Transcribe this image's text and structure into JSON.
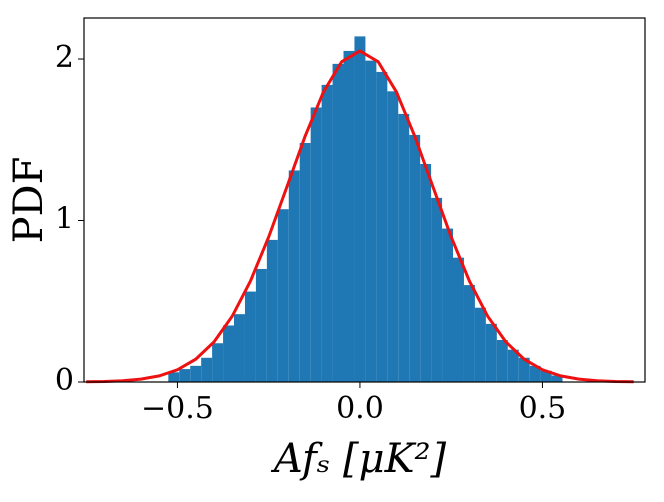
{
  "chart_data": {
    "type": "histogram",
    "xlabel": "Afₛ [μK²]",
    "ylabel": "PDF",
    "bins": [
      -0.525,
      -0.495,
      -0.465,
      -0.435,
      -0.405,
      -0.375,
      -0.345,
      -0.315,
      -0.285,
      -0.255,
      -0.225,
      -0.195,
      -0.165,
      -0.135,
      -0.105,
      -0.075,
      -0.045,
      -0.015,
      0.015,
      0.045,
      0.075,
      0.105,
      0.135,
      0.165,
      0.195,
      0.225,
      0.255,
      0.285,
      0.315,
      0.345,
      0.375,
      0.405,
      0.435,
      0.465,
      0.495,
      0.525,
      0.555
    ],
    "values": [
      0.06,
      0.08,
      0.1,
      0.15,
      0.24,
      0.35,
      0.42,
      0.56,
      0.7,
      0.88,
      1.07,
      1.31,
      1.48,
      1.7,
      1.84,
      1.97,
      2.05,
      2.14,
      1.99,
      1.92,
      1.8,
      1.66,
      1.53,
      1.35,
      1.14,
      0.95,
      0.77,
      0.6,
      0.46,
      0.36,
      0.26,
      0.2,
      0.15,
      0.1,
      0.07,
      0.04
    ],
    "color": "#1f77b4",
    "curve": {
      "color": "#ee1111",
      "x": [
        -0.75,
        -0.7,
        -0.65,
        -0.6,
        -0.55,
        -0.5,
        -0.45,
        -0.4,
        -0.35,
        -0.3,
        -0.25,
        -0.2,
        -0.15,
        -0.1,
        -0.05,
        0,
        0.05,
        0.1,
        0.15,
        0.2,
        0.25,
        0.3,
        0.35,
        0.4,
        0.45,
        0.5,
        0.55,
        0.6,
        0.65,
        0.7,
        0.75
      ],
      "values": [
        0.0012,
        0.0032,
        0.0077,
        0.0177,
        0.0378,
        0.0755,
        0.141,
        0.248,
        0.407,
        0.625,
        0.898,
        1.209,
        1.523,
        1.796,
        1.983,
        2.05,
        1.983,
        1.796,
        1.523,
        1.209,
        0.898,
        0.625,
        0.407,
        0.248,
        0.141,
        0.0755,
        0.0378,
        0.0177,
        0.0077,
        0.0032,
        0.0012
      ]
    },
    "xlim": [
      -0.756,
      0.781
    ],
    "ylim": [
      0,
      2.254
    ],
    "xticks": [
      {
        "value": -0.5,
        "label": "−0.5"
      },
      {
        "value": 0,
        "label": "0.0"
      },
      {
        "value": 0.5,
        "label": "0.5"
      }
    ],
    "yticks": [
      0,
      1,
      2
    ]
  }
}
